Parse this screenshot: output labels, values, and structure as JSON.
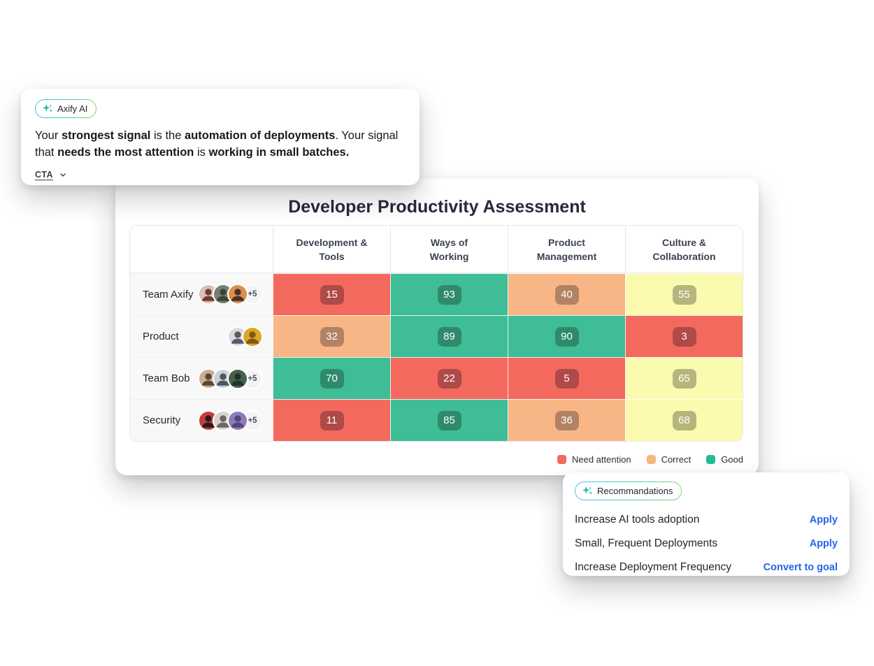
{
  "colors": {
    "accent_blue": "#2563EB",
    "badge_gradient": [
      "#4FC0E8",
      "#7ED96F"
    ],
    "sparkle_teal": "#25BCA9",
    "levels": {
      "red": {
        "cell": "#F4695E",
        "badge": "#AE4A47"
      },
      "orange": {
        "cell": "#F8B687",
        "badge": "#B28264"
      },
      "green": {
        "cell": "#3EBD96",
        "badge": "#2F8A6C"
      },
      "yellow": {
        "cell": "#FBFBAF",
        "badge": "#B5B57D"
      }
    }
  },
  "ai_card": {
    "badge_label": "Axify AI",
    "message_segments": [
      {
        "text": "Your ",
        "bold": false
      },
      {
        "text": "strongest signal",
        "bold": true
      },
      {
        "text": " is the ",
        "bold": false
      },
      {
        "text": "automation of deployments",
        "bold": true
      },
      {
        "text": ". Your signal that ",
        "bold": false
      },
      {
        "text": "needs the most attention",
        "bold": true
      },
      {
        "text": " is ",
        "bold": false
      },
      {
        "text": "working in small batches.",
        "bold": true
      }
    ],
    "cta_label": "CTA"
  },
  "assessment_card": {
    "title": "Developer Productivity Assessment",
    "columns": [
      {
        "label": "Development & Tools",
        "lines": [
          "Development &",
          "Tools"
        ]
      },
      {
        "label": "Ways of Working",
        "lines": [
          "Ways of",
          "Working"
        ]
      },
      {
        "label": "Product Management",
        "lines": [
          "Product",
          "Management"
        ]
      },
      {
        "label": "Culture & Collaboration",
        "lines": [
          "Culture &",
          "Collaboration"
        ]
      }
    ],
    "rows": [
      {
        "team": "Team Axify",
        "extra": "+5",
        "avatars": [
          {
            "bg": "#DCC0B6",
            "fg": "#6E3B33"
          },
          {
            "bg": "#76806E",
            "fg": "#3C4437"
          },
          {
            "bg": "#D98F4E",
            "fg": "#4A332C"
          }
        ],
        "scores": [
          {
            "value": 15,
            "level": "red"
          },
          {
            "value": 93,
            "level": "green"
          },
          {
            "value": 40,
            "level": "orange"
          },
          {
            "value": 55,
            "level": "yellow"
          }
        ]
      },
      {
        "team": "Product",
        "extra": null,
        "avatars": [
          {
            "bg": "#D9DBE0",
            "fg": "#565A63"
          },
          {
            "bg": "#DFA525",
            "fg": "#7A5A14"
          }
        ],
        "scores": [
          {
            "value": 32,
            "level": "orange"
          },
          {
            "value": 89,
            "level": "green"
          },
          {
            "value": 90,
            "level": "green"
          },
          {
            "value": 3,
            "level": "red"
          }
        ]
      },
      {
        "team": "Team Bob",
        "extra": "+5",
        "avatars": [
          {
            "bg": "#C9B094",
            "fg": "#5D4631"
          },
          {
            "bg": "#CBD0D8",
            "fg": "#4E5560"
          },
          {
            "bg": "#46604E",
            "fg": "#243327"
          }
        ],
        "scores": [
          {
            "value": 70,
            "level": "green"
          },
          {
            "value": 22,
            "level": "red"
          },
          {
            "value": 5,
            "level": "red"
          },
          {
            "value": 65,
            "level": "yellow"
          }
        ]
      },
      {
        "team": "Security",
        "extra": "+5",
        "avatars": [
          {
            "bg": "#C23D3F",
            "fg": "#2B1A1C"
          },
          {
            "bg": "#D8D3CC",
            "fg": "#6B665F"
          },
          {
            "bg": "#8E7BB8",
            "fg": "#55457A"
          }
        ],
        "scores": [
          {
            "value": 11,
            "level": "red"
          },
          {
            "value": 85,
            "level": "green"
          },
          {
            "value": 36,
            "level": "orange"
          },
          {
            "value": 68,
            "level": "yellow"
          }
        ]
      }
    ],
    "legend": [
      {
        "label": "Need attention",
        "color": "#F4695E"
      },
      {
        "label": "Correct",
        "color": "#F5B87E"
      },
      {
        "label": "Good",
        "color": "#21BD96"
      }
    ]
  },
  "recommendations_card": {
    "badge_label": "Recommandations",
    "items": [
      {
        "title": "Increase AI tools adoption",
        "action": "Apply"
      },
      {
        "title": "Small, Frequent Deployments",
        "action": "Apply"
      },
      {
        "title": "Increase Deployment Frequency",
        "action": "Convert to goal"
      }
    ]
  },
  "chart_data": {
    "type": "heatmap",
    "title": "Developer Productivity Assessment",
    "x_categories": [
      "Development & Tools",
      "Ways of Working",
      "Product Management",
      "Culture & Collaboration"
    ],
    "y_categories": [
      "Team Axify",
      "Product",
      "Team Bob",
      "Security"
    ],
    "values": [
      [
        15,
        93,
        40,
        55
      ],
      [
        32,
        89,
        90,
        3
      ],
      [
        70,
        22,
        5,
        65
      ],
      [
        11,
        85,
        36,
        68
      ]
    ],
    "legend": [
      "Need attention",
      "Correct",
      "Good"
    ],
    "legend_position": "bottom-right"
  }
}
